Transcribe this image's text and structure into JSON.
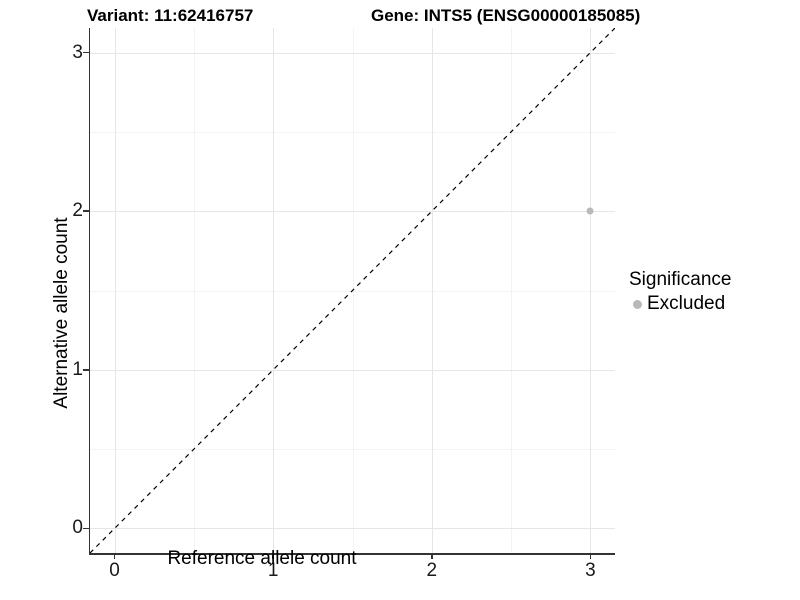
{
  "titles": {
    "left": "Variant: 11:62416757",
    "right": "Gene: INTS5 (ENSG00000185085)"
  },
  "chart_data": {
    "type": "scatter",
    "xlabel": "Reference allele count",
    "ylabel": "Alternative allele count",
    "xlim": [
      -0.155,
      3.155
    ],
    "ylim": [
      -0.155,
      3.155
    ],
    "x_ticks": [
      0,
      1,
      2,
      3
    ],
    "y_ticks": [
      0,
      1,
      2,
      3
    ],
    "x_minor": [
      0.5,
      1.5,
      2.5
    ],
    "y_minor": [
      0.5,
      1.5,
      2.5
    ],
    "grid": "major+minor",
    "background": "#ffffff",
    "major_grid_color": "#e6e6e6",
    "minor_grid_color": "#f3f3f3",
    "reference_line": {
      "type": "identity y=x",
      "style": "dashed",
      "color": "#000000"
    },
    "series": [
      {
        "name": "Excluded",
        "color": "#b9b9b9",
        "points": [
          {
            "x": 3,
            "y": 2
          }
        ]
      }
    ],
    "legend": {
      "title": "Significance",
      "position": "right",
      "items": [
        {
          "label": "Excluded",
          "color": "#b9b9b9"
        }
      ]
    }
  }
}
